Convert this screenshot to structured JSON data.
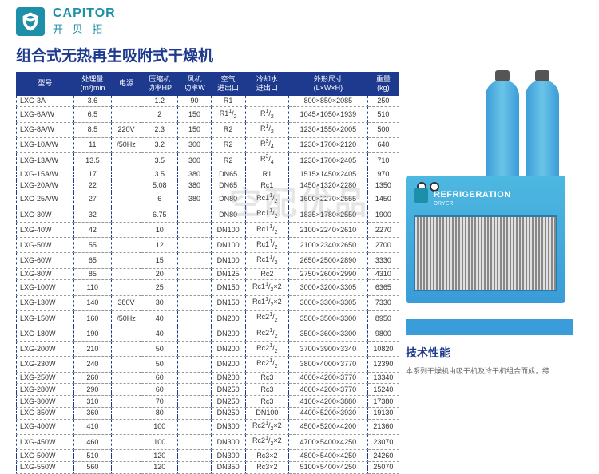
{
  "brand": {
    "en": "CAPITOR",
    "cn": "开 贝 拓"
  },
  "title": "组合式无热再生吸附式干燥机",
  "watermark": "空配优品",
  "headers": [
    "型号",
    "处理量\n(m³)min",
    "电源",
    "压缩机\n功率HP",
    "风机\n功率W",
    "空气\n进出口",
    "冷却水\n进出口",
    "外形尺寸\n(L×W×H)",
    "重量\n(kg)"
  ],
  "rows": [
    [
      "LXG-3A",
      "3.6",
      "",
      "1.2",
      "90",
      "R1",
      "",
      "800×850×2085",
      "250"
    ],
    [
      "LXG-6A/W",
      "6.5",
      "",
      "2",
      "150",
      "R1¹/₂",
      "R¹/₂",
      "1045×1050×1939",
      "510"
    ],
    [
      "LXG-8A/W",
      "8.5",
      "220V",
      "2.3",
      "150",
      "R2",
      "R¹/₂",
      "1230×1550×2005",
      "500"
    ],
    [
      "LXG-10A/W",
      "11",
      "/50Hz",
      "3.2",
      "300",
      "R2",
      "R³/₄",
      "1230×1700×2120",
      "640"
    ],
    [
      "LXG-13A/W",
      "13.5",
      "",
      "3.5",
      "300",
      "R2",
      "R³/₄",
      "1230×1700×2405",
      "710"
    ],
    [
      "LXG-15A/W",
      "17",
      "",
      "3.5",
      "380",
      "DN65",
      "R1",
      "1515×1450×2405",
      "970"
    ],
    [
      "LXG-20A/W",
      "22",
      "",
      "5.08",
      "380",
      "DN65",
      "Rc1",
      "1450×1320×2280",
      "1350"
    ],
    [
      "LXG-25A/W",
      "27",
      "",
      "6",
      "380",
      "DN80",
      "Rc1¹/₂",
      "1600×2270×2555",
      "1450"
    ],
    [
      "LXG-30W",
      "32",
      "",
      "6.75",
      "",
      "DN80",
      "Rc1¹/₂",
      "1835×1780×2550",
      "1900"
    ],
    [
      "LXG-40W",
      "42",
      "",
      "10",
      "",
      "DN100",
      "Rc1¹/₂",
      "2100×2240×2610",
      "2270"
    ],
    [
      "LXG-50W",
      "55",
      "",
      "12",
      "",
      "DN100",
      "Rc1¹/₂",
      "2100×2340×2650",
      "2700"
    ],
    [
      "LXG-60W",
      "65",
      "",
      "15",
      "",
      "DN100",
      "Rc1¹/₂",
      "2650×2500×2890",
      "3330"
    ],
    [
      "LXG-80W",
      "85",
      "",
      "20",
      "",
      "DN125",
      "Rc2",
      "2750×2600×2990",
      "4310"
    ],
    [
      "LXG-100W",
      "110",
      "",
      "25",
      "",
      "DN150",
      "Rc1¹/₂×2",
      "3000×3200×3305",
      "6365"
    ],
    [
      "LXG-130W",
      "140",
      "380V",
      "30",
      "",
      "DN150",
      "Rc1¹/₂×2",
      "3000×3300×3305",
      "7330"
    ],
    [
      "LXG-150W",
      "160",
      "/50Hz",
      "40",
      "",
      "DN200",
      "Rc2¹/₂",
      "3500×3500×3300",
      "8950"
    ],
    [
      "LXG-180W",
      "190",
      "",
      "40",
      "",
      "DN200",
      "Rc2¹/₂",
      "3500×3600×3300",
      "9800"
    ],
    [
      "LXG-200W",
      "210",
      "",
      "50",
      "",
      "DN200",
      "Rc2¹/₂",
      "3700×3900×3340",
      "10820"
    ],
    [
      "LXG-230W",
      "240",
      "",
      "50",
      "",
      "DN200",
      "Rc2¹/₂",
      "3800×4000×3770",
      "12390"
    ],
    [
      "LXG-250W",
      "260",
      "",
      "60",
      "",
      "DN200",
      "Rc3",
      "4000×4200×3770",
      "13340"
    ],
    [
      "LXG-280W",
      "290",
      "",
      "60",
      "",
      "DN250",
      "Rc3",
      "4000×4200×3770",
      "15240"
    ],
    [
      "LXG-300W",
      "310",
      "",
      "70",
      "",
      "DN250",
      "Rc3",
      "4100×4200×3880",
      "17380"
    ],
    [
      "LXG-350W",
      "360",
      "",
      "80",
      "",
      "DN250",
      "DN100",
      "4400×5200×3930",
      "19130"
    ],
    [
      "LXG-400W",
      "410",
      "",
      "100",
      "",
      "DN300",
      "Rc2¹/₂×2",
      "4500×5200×4200",
      "21360"
    ],
    [
      "LXG-450W",
      "460",
      "",
      "100",
      "",
      "DN300",
      "Rc2¹/₂×2",
      "4700×5400×4250",
      "23070"
    ],
    [
      "LXG-500W",
      "510",
      "",
      "120",
      "",
      "DN300",
      "Rc3×2",
      "4800×5400×4250",
      "24260"
    ],
    [
      "LXG-550W",
      "560",
      "",
      "120",
      "",
      "DN350",
      "Rc3×2",
      "5100×5400×4250",
      "25070"
    ]
  ],
  "dryer_label": "REFRIGERATION",
  "dryer_sub": "DRYER",
  "tech_title": "技术性能",
  "tech_desc": "本系列干燥机由吸干机及冷干机组合而成，综"
}
